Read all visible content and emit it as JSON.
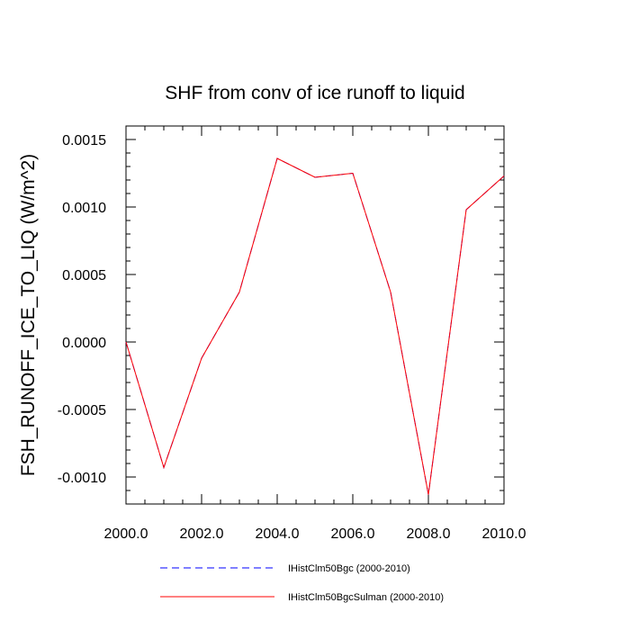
{
  "chart_data": {
    "type": "line",
    "title": "SHF from conv of ice runoff to liquid",
    "xlabel": "",
    "ylabel": "FSH_RUNOFF_ICE_TO_LIQ  (W/m^2)",
    "xlim": [
      2000,
      2010
    ],
    "ylim": [
      -0.0012,
      0.0016
    ],
    "x_ticks": [
      2000,
      2002,
      2004,
      2006,
      2008,
      2010
    ],
    "x_tick_labels": [
      "2000.0",
      "2002.0",
      "2004.0",
      "2006.0",
      "2008.0",
      "2010.0"
    ],
    "y_ticks": [
      -0.001,
      -0.0005,
      0.0,
      0.0005,
      0.001,
      0.0015
    ],
    "y_tick_labels": [
      "-0.0010",
      "-0.0005",
      "0.0000",
      "0.0005",
      "0.0010",
      "0.0015"
    ],
    "x": [
      2000,
      2001,
      2002,
      2003,
      2004,
      2005,
      2006,
      2007,
      2008,
      2009,
      2010
    ],
    "series": [
      {
        "name": "IHistClm50Bgc (2000-2010)",
        "color": "#0000ff",
        "style": "dashed",
        "values": [
          0.0,
          -0.00093,
          -0.00012,
          0.00037,
          0.00136,
          0.00122,
          0.00125,
          0.00037,
          -0.00113,
          0.00098,
          0.00123
        ]
      },
      {
        "name": "IHistClm50BgcSulman (2000-2010)",
        "color": "#ff0000",
        "style": "solid",
        "values": [
          0.0,
          -0.00093,
          -0.00012,
          0.00037,
          0.00136,
          0.00122,
          0.00125,
          0.00037,
          -0.00113,
          0.00098,
          0.00123
        ]
      }
    ],
    "legend_position": "bottom",
    "grid": false
  }
}
